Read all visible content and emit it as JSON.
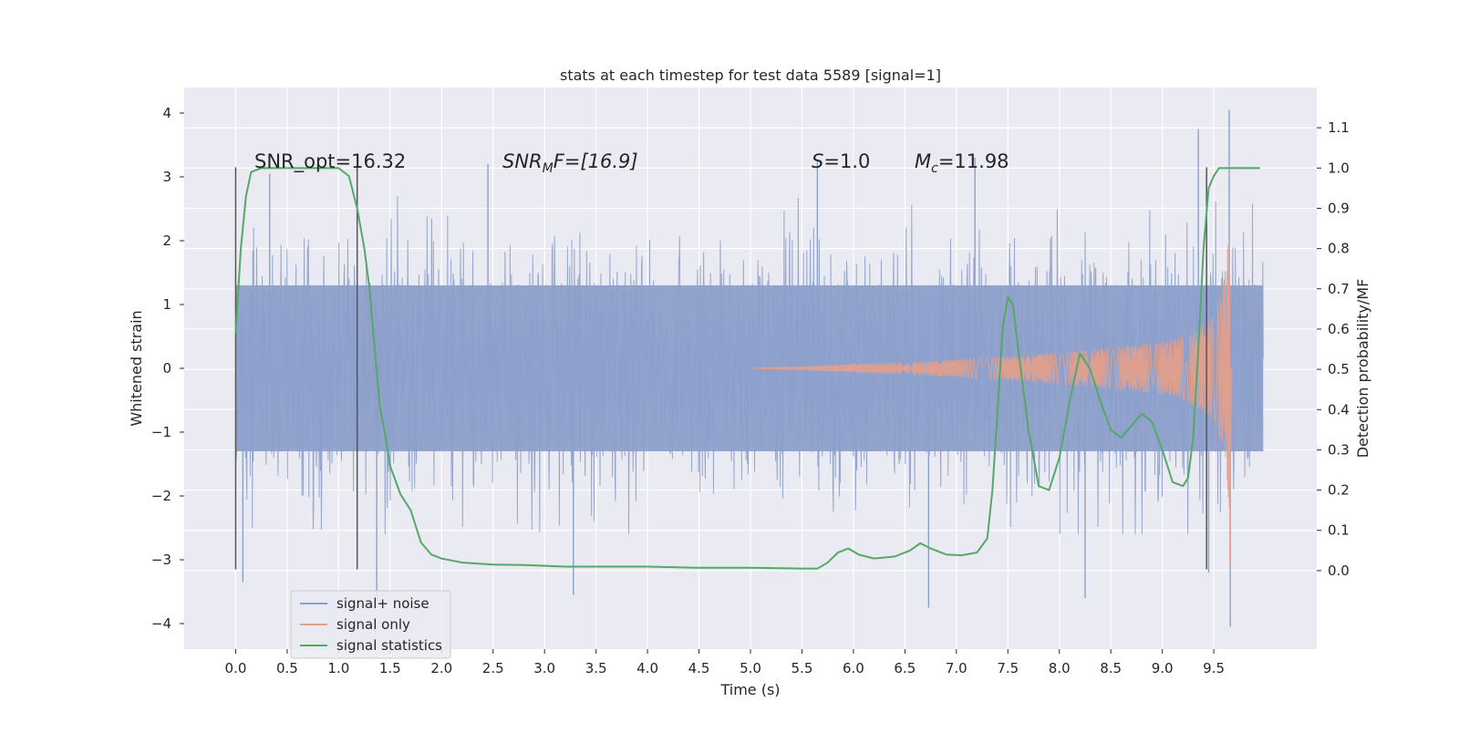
{
  "chart_data": {
    "type": "line",
    "title": "stats at each timestep for test data 5589 [signal=1]",
    "xlabel": "Time (s)",
    "ylabel_left": "Whitened strain",
    "ylabel_right": "Detection probability/MF",
    "xlim": [
      -0.5,
      10.5
    ],
    "ylim_left": [
      -4.4,
      4.4
    ],
    "ylim_right": [
      -0.195,
      1.2
    ],
    "x_ticks": [
      0.0,
      0.5,
      1.0,
      1.5,
      2.0,
      2.5,
      3.0,
      3.5,
      4.0,
      4.5,
      5.0,
      5.5,
      6.0,
      6.5,
      7.0,
      7.5,
      8.0,
      8.5,
      9.0,
      9.5
    ],
    "x_tick_labels": [
      "0.0",
      "0.5",
      "1.0",
      "1.5",
      "2.0",
      "2.5",
      "3.0",
      "3.5",
      "4.0",
      "4.5",
      "5.0",
      "5.5",
      "6.0",
      "6.5",
      "7.0",
      "7.5",
      "8.0",
      "8.5",
      "9.0",
      "9.5"
    ],
    "y_left_ticks": [
      -4,
      -3,
      -2,
      -1,
      0,
      1,
      2,
      3,
      4
    ],
    "y_left_tick_labels": [
      "−4",
      "−3",
      "−2",
      "−1",
      "0",
      "1",
      "2",
      "3",
      "4"
    ],
    "y_right_ticks": [
      0.0,
      0.1,
      0.2,
      0.3,
      0.4,
      0.5,
      0.6,
      0.7,
      0.8,
      0.9,
      1.0,
      1.1
    ],
    "y_right_tick_labels": [
      "0.0",
      "0.1",
      "0.2",
      "0.3",
      "0.4",
      "0.5",
      "0.6",
      "0.7",
      "0.8",
      "0.9",
      "1.0",
      "1.1"
    ],
    "grid": true,
    "legend_position": "lower-left",
    "annotations": {
      "snr_opt": "SNR_opt=16.32",
      "snr_mf": {
        "main": "SNR",
        "sub": "M",
        "after_sub": "F=[16.9]"
      },
      "s_stat": {
        "main": "S",
        "rest": "=1.0"
      },
      "mc": {
        "main": "M",
        "sub": "c",
        "rest": "=11.98"
      }
    },
    "vertical_lines": [
      {
        "x": 0.0,
        "y_range": [
          -3.15,
          3.15
        ]
      },
      {
        "x": 1.18,
        "y_range": [
          -3.15,
          3.15
        ]
      },
      {
        "x": 9.43,
        "y_range": [
          -3.15,
          3.15
        ]
      }
    ],
    "series": [
      {
        "name": "signal+ noise",
        "color": "#8da0cb",
        "axis": "left",
        "x_range": [
          0.0,
          9.98
        ],
        "typical_envelope": [
          -1.3,
          1.3
        ],
        "spike_range": [
          -2.6,
          2.7
        ],
        "extreme_points": [
          {
            "x": 0.07,
            "y": -3.35
          },
          {
            "x": 0.33,
            "y": 3.05
          },
          {
            "x": 1.37,
            "y": -3.6
          },
          {
            "x": 2.45,
            "y": 3.2
          },
          {
            "x": 3.28,
            "y": -3.55
          },
          {
            "x": 5.65,
            "y": 3.25
          },
          {
            "x": 6.73,
            "y": -3.75
          },
          {
            "x": 7.18,
            "y": 3.3
          },
          {
            "x": 8.25,
            "y": -3.6
          },
          {
            "x": 9.35,
            "y": 3.75
          },
          {
            "x": 9.45,
            "y": -3.2
          },
          {
            "x": 9.65,
            "y": 4.05
          },
          {
            "x": 9.66,
            "y": -4.05
          }
        ]
      },
      {
        "name": "signal only",
        "color": "#e5a08a",
        "axis": "left",
        "amplitude_envelope": [
          [
            5.0,
            0.0
          ],
          [
            5.5,
            0.03
          ],
          [
            6.0,
            0.07
          ],
          [
            6.5,
            0.1
          ],
          [
            7.0,
            0.14
          ],
          [
            7.5,
            0.19
          ],
          [
            8.0,
            0.25
          ],
          [
            8.5,
            0.32
          ],
          [
            9.0,
            0.42
          ],
          [
            9.2,
            0.5
          ],
          [
            9.4,
            0.68
          ],
          [
            9.5,
            0.85
          ],
          [
            9.58,
            1.2
          ],
          [
            9.63,
            1.8
          ],
          [
            9.65,
            2.2
          ],
          [
            9.66,
            0.0
          ]
        ],
        "merger_min": -3.05
      },
      {
        "name": "signal statistics",
        "color": "#55a868",
        "axis": "right",
        "x": [
          0.0,
          0.05,
          0.1,
          0.15,
          0.25,
          0.5,
          0.8,
          1.0,
          1.1,
          1.18,
          1.25,
          1.3,
          1.35,
          1.4,
          1.45,
          1.5,
          1.6,
          1.7,
          1.8,
          1.9,
          2.0,
          2.2,
          2.5,
          2.8,
          3.2,
          3.5,
          4.0,
          4.5,
          5.0,
          5.5,
          5.65,
          5.75,
          5.85,
          5.95,
          6.05,
          6.2,
          6.4,
          6.55,
          6.65,
          6.75,
          6.9,
          7.05,
          7.2,
          7.3,
          7.35,
          7.45,
          7.5,
          7.55,
          7.6,
          7.7,
          7.8,
          7.9,
          8.0,
          8.1,
          8.2,
          8.3,
          8.4,
          8.5,
          8.6,
          8.7,
          8.8,
          8.9,
          9.0,
          9.1,
          9.2,
          9.25,
          9.3,
          9.35,
          9.4,
          9.45,
          9.5,
          9.55,
          9.6,
          9.7,
          9.8,
          9.95
        ],
        "y": [
          0.59,
          0.8,
          0.93,
          0.99,
          1.0,
          1.0,
          1.0,
          1.0,
          0.98,
          0.9,
          0.8,
          0.7,
          0.55,
          0.41,
          0.34,
          0.26,
          0.19,
          0.15,
          0.07,
          0.04,
          0.03,
          0.02,
          0.015,
          0.014,
          0.01,
          0.01,
          0.01,
          0.007,
          0.007,
          0.005,
          0.005,
          0.02,
          0.045,
          0.055,
          0.04,
          0.03,
          0.035,
          0.05,
          0.068,
          0.055,
          0.04,
          0.038,
          0.045,
          0.08,
          0.2,
          0.6,
          0.68,
          0.66,
          0.55,
          0.35,
          0.21,
          0.2,
          0.28,
          0.42,
          0.54,
          0.5,
          0.42,
          0.35,
          0.33,
          0.36,
          0.39,
          0.37,
          0.3,
          0.22,
          0.21,
          0.23,
          0.33,
          0.55,
          0.8,
          0.95,
          0.98,
          1.0,
          1.0,
          1.0,
          1.0,
          1.0
        ]
      }
    ]
  }
}
